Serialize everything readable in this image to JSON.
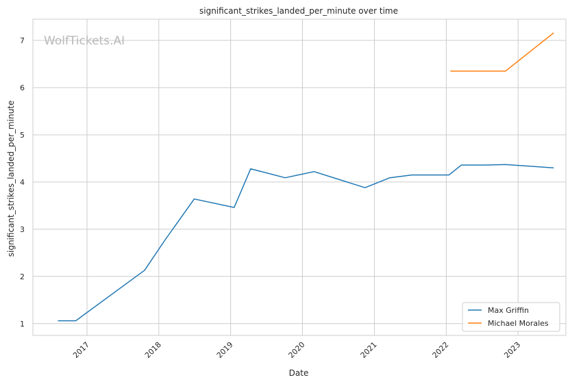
{
  "watermark": "WolfTickets.AI",
  "chart_data": {
    "type": "line",
    "title": "significant_strikes_landed_per_minute over time",
    "xlabel": "Date",
    "ylabel": "significant_strikes_landed_per_minute",
    "x_ticks": [
      "2017",
      "2018",
      "2019",
      "2020",
      "2021",
      "2022",
      "2023"
    ],
    "y_ticks": [
      "1",
      "2",
      "3",
      "4",
      "5",
      "6",
      "7"
    ],
    "xlim": [
      "2016-04-01",
      "2023-09-01"
    ],
    "ylim": [
      0.75,
      7.45
    ],
    "grid": true,
    "legend_position": "bottom-right",
    "colors": {
      "Max Griffin": "#1f77b4",
      "Michael Morales": "#ff7f0e"
    },
    "series": [
      {
        "name": "Max Griffin",
        "points": [
          {
            "x": "2016-08-06",
            "y": 1.06
          },
          {
            "x": "2016-11-05",
            "y": 1.06
          },
          {
            "x": "2017-10-21",
            "y": 2.13
          },
          {
            "x": "2018-02-03",
            "y": 2.78
          },
          {
            "x": "2018-06-30",
            "y": 3.64
          },
          {
            "x": "2019-01-19",
            "y": 3.46
          },
          {
            "x": "2019-04-13",
            "y": 4.28
          },
          {
            "x": "2019-10-05",
            "y": 4.09
          },
          {
            "x": "2020-02-29",
            "y": 4.22
          },
          {
            "x": "2020-11-14",
            "y": 3.88
          },
          {
            "x": "2021-03-20",
            "y": 4.09
          },
          {
            "x": "2021-07-10",
            "y": 4.15
          },
          {
            "x": "2022-01-15",
            "y": 4.15
          },
          {
            "x": "2022-03-19",
            "y": 4.36
          },
          {
            "x": "2022-07-16",
            "y": 4.36
          },
          {
            "x": "2022-10-29",
            "y": 4.37
          },
          {
            "x": "2023-07-01",
            "y": 4.3
          }
        ]
      },
      {
        "name": "Michael Morales",
        "points": [
          {
            "x": "2022-01-22",
            "y": 6.35
          },
          {
            "x": "2022-10-29",
            "y": 6.35
          },
          {
            "x": "2023-07-01",
            "y": 7.16
          }
        ]
      }
    ]
  }
}
